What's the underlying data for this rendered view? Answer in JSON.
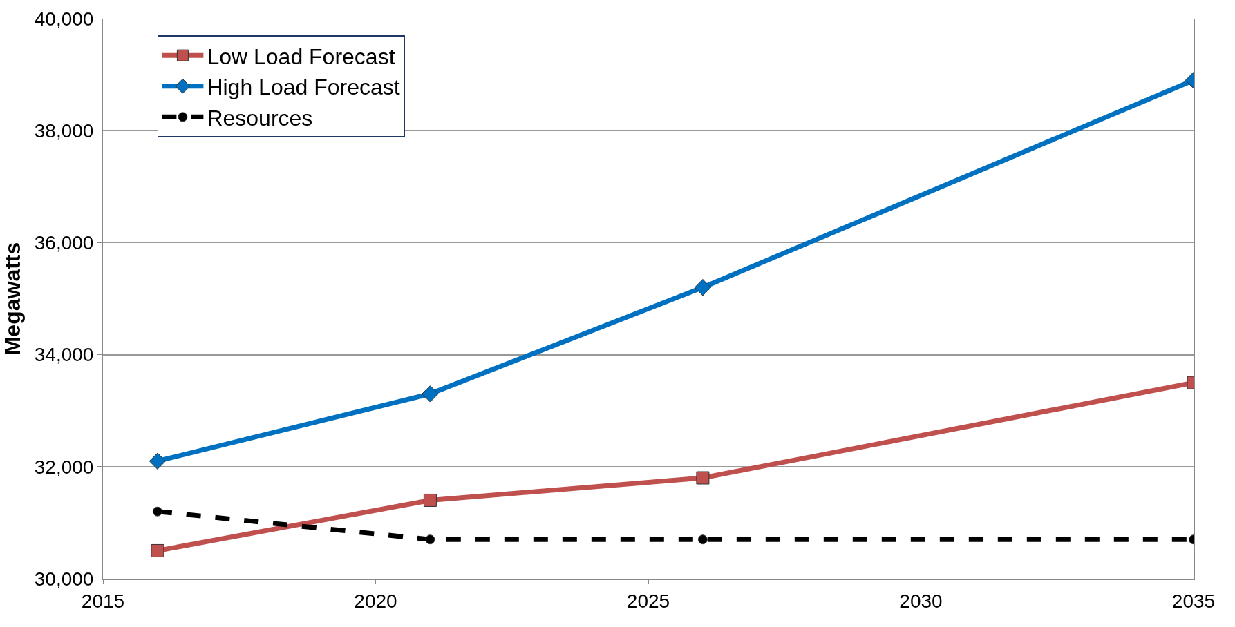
{
  "chart_data": {
    "type": "line",
    "ylabel": "Megawatts",
    "x": [
      2016,
      2021,
      2026,
      2035
    ],
    "series": [
      {
        "name": "Low Load Forecast",
        "color": "#c0504d",
        "marker": "square",
        "line_style": "solid",
        "values": [
          30500,
          31400,
          31800,
          33500
        ]
      },
      {
        "name": "High Load Forecast",
        "color": "#0070c0",
        "marker": "diamond",
        "line_style": "solid",
        "values": [
          32100,
          33300,
          35200,
          38900
        ]
      },
      {
        "name": "Resources",
        "color": "#000000",
        "marker": "circle",
        "line_style": "dashed",
        "values": [
          31200,
          30700,
          30700,
          30700
        ]
      }
    ],
    "xlim": [
      2015,
      2035
    ],
    "xticks": [
      2015,
      2020,
      2025,
      2030,
      2035
    ],
    "ylim": [
      30000,
      40000
    ],
    "yticks": [
      {
        "value": 30000,
        "label": "30,000"
      },
      {
        "value": 32000,
        "label": "32,000"
      },
      {
        "value": 34000,
        "label": "34,000"
      },
      {
        "value": 36000,
        "label": "36,000"
      },
      {
        "value": 38000,
        "label": "38,000"
      },
      {
        "value": 40000,
        "label": "40,000"
      }
    ],
    "grid": "y",
    "legend": "top left"
  }
}
